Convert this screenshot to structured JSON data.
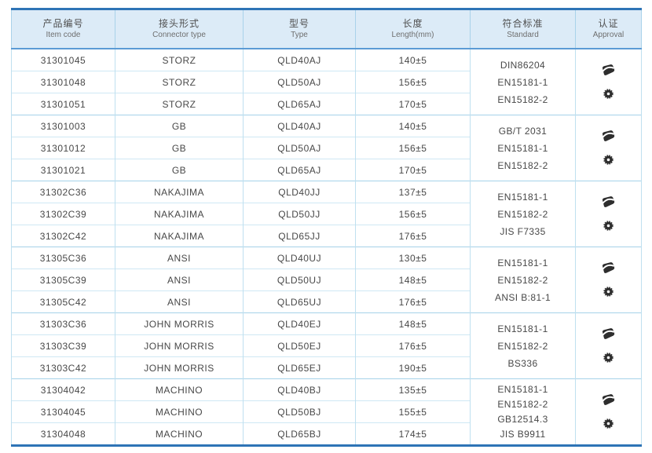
{
  "colors": {
    "accent_border": "#2e74b6",
    "header_bg": "#dcebf7",
    "header_rule": "#5b9bd5",
    "grid_line": "#bfe0f0",
    "text": "#484848"
  },
  "table": {
    "columns": [
      {
        "zh": "产品编号",
        "en": "Item code"
      },
      {
        "zh": "接头形式",
        "en": "Connector type"
      },
      {
        "zh": "型号",
        "en": "Type"
      },
      {
        "zh": "长度",
        "en": "Length(mm)"
      },
      {
        "zh": "符合标准",
        "en": "Standard"
      },
      {
        "zh": "认证",
        "en": "Approval"
      }
    ],
    "approval_icon_names": [
      "cert-logo-icon",
      "cert-seal-icon"
    ],
    "groups": [
      {
        "rows": [
          {
            "code": "31301045",
            "connector": "STORZ",
            "type": "QLD40AJ",
            "length": "140±5"
          },
          {
            "code": "31301048",
            "connector": "STORZ",
            "type": "QLD50AJ",
            "length": "156±5"
          },
          {
            "code": "31301051",
            "connector": "STORZ",
            "type": "QLD65AJ",
            "length": "170±5"
          }
        ],
        "standards": [
          "DIN86204",
          "EN15181-1",
          "EN15182-2"
        ]
      },
      {
        "rows": [
          {
            "code": "31301003",
            "connector": "GB",
            "type": "QLD40AJ",
            "length": "140±5"
          },
          {
            "code": "31301012",
            "connector": "GB",
            "type": "QLD50AJ",
            "length": "156±5"
          },
          {
            "code": "31301021",
            "connector": "GB",
            "type": "QLD65AJ",
            "length": "170±5"
          }
        ],
        "standards": [
          "GB/T 2031",
          "EN15181-1",
          "EN15182-2"
        ]
      },
      {
        "rows": [
          {
            "code": "31302C36",
            "connector": "NAKAJIMA",
            "type": "QLD40JJ",
            "length": "137±5"
          },
          {
            "code": "31302C39",
            "connector": "NAKAJIMA",
            "type": "QLD50JJ",
            "length": "156±5"
          },
          {
            "code": "31302C42",
            "connector": "NAKAJIMA",
            "type": "QLD65JJ",
            "length": "176±5"
          }
        ],
        "standards": [
          "EN15181-1",
          "EN15182-2",
          "JIS F7335"
        ]
      },
      {
        "rows": [
          {
            "code": "31305C36",
            "connector": "ANSI",
            "type": "QLD40UJ",
            "length": "130±5"
          },
          {
            "code": "31305C39",
            "connector": "ANSI",
            "type": "QLD50UJ",
            "length": "148±5"
          },
          {
            "code": "31305C42",
            "connector": "ANSI",
            "type": "QLD65UJ",
            "length": "176±5"
          }
        ],
        "standards": [
          "EN15181-1",
          "EN15182-2",
          "ANSI B:81-1"
        ]
      },
      {
        "rows": [
          {
            "code": "31303C36",
            "connector": "JOHN MORRIS",
            "type": "QLD40EJ",
            "length": "148±5"
          },
          {
            "code": "31303C39",
            "connector": "JOHN MORRIS",
            "type": "QLD50EJ",
            "length": "176±5"
          },
          {
            "code": "31303C42",
            "connector": "JOHN MORRIS",
            "type": "QLD65EJ",
            "length": "190±5"
          }
        ],
        "standards": [
          "EN15181-1",
          "EN15182-2",
          "BS336"
        ]
      },
      {
        "rows": [
          {
            "code": "31304042",
            "connector": "MACHINO",
            "type": "QLD40BJ",
            "length": "135±5"
          },
          {
            "code": "31304045",
            "connector": "MACHINO",
            "type": "QLD50BJ",
            "length": "155±5"
          },
          {
            "code": "31304048",
            "connector": "MACHINO",
            "type": "QLD65BJ",
            "length": "174±5"
          }
        ],
        "standards": [
          "EN15181-1",
          "EN15182-2",
          "GB12514.3",
          "JIS B9911"
        ]
      }
    ]
  }
}
